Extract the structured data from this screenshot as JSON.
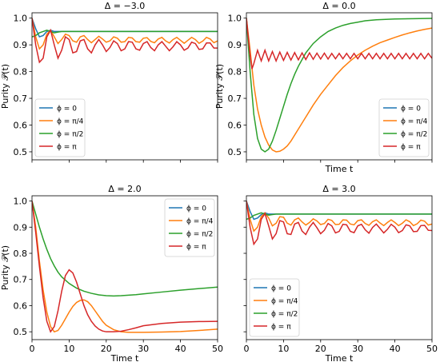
{
  "figure": {
    "ylabel": "Purity 𝒫(t)",
    "xlabel": "Time t"
  },
  "chart_data": [
    {
      "type": "line",
      "title": "Δ = −3.0",
      "xlabel": "",
      "ylabel": "Purity 𝒫(t)",
      "xlim": [
        0,
        50
      ],
      "ylim": [
        0.47,
        1.02
      ],
      "yticks": [
        "0.5",
        "0.6",
        "0.7",
        "0.8",
        "0.9",
        "1.0"
      ],
      "xticks": [],
      "legend": "lower-left",
      "series": [
        {
          "name": "ϕ = 0",
          "color": "#1f77b4",
          "x": [
            0,
            1,
            2,
            3,
            4,
            5,
            6,
            8,
            10,
            20,
            30,
            40,
            50
          ],
          "y": [
            1.0,
            0.96,
            0.93,
            0.935,
            0.95,
            0.955,
            0.95,
            0.95,
            0.95,
            0.95,
            0.95,
            0.95,
            0.95
          ]
        },
        {
          "name": "ϕ = π/4",
          "color": "#ff7f0e",
          "x": [
            0,
            1,
            2,
            3,
            4,
            5,
            6,
            7,
            8,
            9,
            10,
            11,
            12,
            13,
            14,
            15,
            16,
            17,
            18,
            19,
            20,
            21,
            22,
            23,
            24,
            25,
            26,
            27,
            28,
            29,
            30,
            31,
            32,
            33,
            34,
            35,
            36,
            37,
            38,
            39,
            40,
            41,
            42,
            43,
            44,
            45,
            46,
            47,
            48,
            49,
            50
          ],
          "y": [
            1.0,
            0.93,
            0.885,
            0.9,
            0.94,
            0.955,
            0.93,
            0.905,
            0.92,
            0.94,
            0.935,
            0.915,
            0.91,
            0.93,
            0.935,
            0.92,
            0.908,
            0.92,
            0.932,
            0.922,
            0.91,
            0.915,
            0.93,
            0.925,
            0.91,
            0.912,
            0.928,
            0.926,
            0.912,
            0.91,
            0.925,
            0.927,
            0.913,
            0.908,
            0.922,
            0.928,
            0.915,
            0.907,
            0.92,
            0.928,
            0.917,
            0.906,
            0.917,
            0.928,
            0.92,
            0.906,
            0.914,
            0.928,
            0.922,
            0.908,
            0.915
          ]
        },
        {
          "name": "ϕ = π/2",
          "color": "#2ca02c",
          "x": [
            0,
            1,
            2,
            3,
            4,
            5,
            6,
            7,
            8,
            10,
            15,
            20,
            30,
            40,
            50
          ],
          "y": [
            0.93,
            0.935,
            0.945,
            0.95,
            0.955,
            0.95,
            0.945,
            0.948,
            0.95,
            0.95,
            0.95,
            0.95,
            0.95,
            0.95,
            0.95
          ]
        },
        {
          "name": "ϕ = π",
          "color": "#d62728",
          "x": [
            0,
            1,
            2,
            3,
            4,
            5,
            6,
            7,
            8,
            9,
            10,
            11,
            12,
            13,
            14,
            15,
            16,
            17,
            18,
            19,
            20,
            21,
            22,
            23,
            24,
            25,
            26,
            27,
            28,
            29,
            30,
            31,
            32,
            33,
            34,
            35,
            36,
            37,
            38,
            39,
            40,
            41,
            42,
            43,
            44,
            45,
            46,
            47,
            48,
            49,
            50
          ],
          "y": [
            1.0,
            0.9,
            0.835,
            0.85,
            0.93,
            0.955,
            0.9,
            0.85,
            0.88,
            0.93,
            0.92,
            0.87,
            0.875,
            0.915,
            0.92,
            0.885,
            0.87,
            0.9,
            0.92,
            0.9,
            0.875,
            0.89,
            0.915,
            0.905,
            0.878,
            0.885,
            0.912,
            0.91,
            0.885,
            0.88,
            0.905,
            0.912,
            0.89,
            0.878,
            0.9,
            0.912,
            0.895,
            0.878,
            0.893,
            0.912,
            0.9,
            0.88,
            0.888,
            0.91,
            0.905,
            0.883,
            0.885,
            0.907,
            0.907,
            0.888,
            0.888
          ]
        }
      ]
    },
    {
      "type": "line",
      "title": "Δ = 0.0",
      "xlabel": "Time t",
      "ylabel": "Purity 𝒫(t)",
      "xlim": [
        0,
        50
      ],
      "ylim": [
        0.47,
        1.02
      ],
      "yticks": [
        "0.5",
        "0.6",
        "0.7",
        "0.8",
        "0.9",
        "1.0"
      ],
      "xticks": [],
      "legend": "lower-right",
      "series": [
        {
          "name": "ϕ = 0",
          "color": "#1f77b4",
          "x": [],
          "y": []
        },
        {
          "name": "ϕ = π/4",
          "color": "#ff7f0e",
          "x": [
            0,
            1,
            2,
            3,
            4,
            5,
            6,
            7,
            8,
            9,
            10,
            11,
            12,
            14,
            16,
            18,
            20,
            22,
            24,
            26,
            28,
            30,
            32,
            34,
            36,
            38,
            40,
            42,
            44,
            46,
            48,
            50
          ],
          "y": [
            1.0,
            0.88,
            0.75,
            0.66,
            0.6,
            0.555,
            0.525,
            0.507,
            0.5,
            0.502,
            0.51,
            0.522,
            0.54,
            0.585,
            0.63,
            0.675,
            0.715,
            0.75,
            0.785,
            0.815,
            0.84,
            0.862,
            0.88,
            0.895,
            0.908,
            0.918,
            0.928,
            0.937,
            0.945,
            0.952,
            0.958,
            0.963
          ]
        },
        {
          "name": "ϕ = π/2",
          "color": "#2ca02c",
          "x": [
            0,
            1,
            2,
            3,
            4,
            5,
            6,
            7,
            8,
            9,
            10,
            11,
            12,
            13,
            14,
            15,
            16,
            18,
            20,
            22,
            24,
            26,
            28,
            30,
            32,
            35,
            40,
            45,
            50
          ],
          "y": [
            1.0,
            0.8,
            0.64,
            0.55,
            0.51,
            0.5,
            0.51,
            0.54,
            0.58,
            0.625,
            0.67,
            0.715,
            0.755,
            0.79,
            0.82,
            0.845,
            0.87,
            0.905,
            0.93,
            0.95,
            0.963,
            0.973,
            0.98,
            0.985,
            0.99,
            0.994,
            0.997,
            0.998,
            0.999
          ]
        },
        {
          "name": "ϕ = π",
          "color": "#d62728",
          "x": [
            0,
            0.5,
            1,
            1.5,
            2,
            3,
            4,
            5,
            6,
            7,
            8,
            9,
            10,
            11,
            12,
            13,
            14,
            15,
            16,
            17,
            18,
            19,
            20,
            21,
            22,
            23,
            24,
            25,
            26,
            27,
            28,
            29,
            30,
            31,
            32,
            33,
            34,
            35,
            36,
            37,
            38,
            39,
            40,
            41,
            42,
            43,
            44,
            45,
            46,
            47,
            48,
            49,
            50
          ],
          "y": [
            1.0,
            0.93,
            0.86,
            0.81,
            0.83,
            0.88,
            0.84,
            0.88,
            0.84,
            0.875,
            0.84,
            0.873,
            0.842,
            0.872,
            0.843,
            0.871,
            0.844,
            0.87,
            0.845,
            0.87,
            0.846,
            0.869,
            0.847,
            0.869,
            0.847,
            0.868,
            0.848,
            0.868,
            0.848,
            0.868,
            0.848,
            0.868,
            0.848,
            0.868,
            0.848,
            0.868,
            0.848,
            0.868,
            0.848,
            0.868,
            0.848,
            0.868,
            0.848,
            0.868,
            0.848,
            0.868,
            0.848,
            0.868,
            0.848,
            0.868,
            0.848,
            0.868,
            0.85
          ]
        }
      ]
    },
    {
      "type": "line",
      "title": "Δ = 2.0",
      "xlabel": "Time t",
      "ylabel": "Purity 𝒫(t)",
      "xlim": [
        0,
        50
      ],
      "ylim": [
        0.47,
        1.02
      ],
      "yticks": [
        "0.5",
        "0.6",
        "0.7",
        "0.8",
        "0.9",
        "1.0"
      ],
      "xticks": [
        "0",
        "10",
        "20",
        "30",
        "40",
        "50"
      ],
      "legend": "upper-right",
      "series": [
        {
          "name": "ϕ = 0",
          "color": "#1f77b4",
          "x": [],
          "y": []
        },
        {
          "name": "ϕ = π/4",
          "color": "#ff7f0e",
          "x": [
            0,
            1,
            2,
            3,
            4,
            5,
            6,
            7,
            8,
            9,
            10,
            11,
            12,
            13,
            14,
            15,
            16,
            17,
            18,
            19,
            20,
            22,
            24,
            26,
            28,
            30,
            35,
            40,
            45,
            50
          ],
          "y": [
            1.0,
            0.9,
            0.77,
            0.66,
            0.575,
            0.52,
            0.5,
            0.505,
            0.525,
            0.55,
            0.575,
            0.597,
            0.612,
            0.62,
            0.622,
            0.615,
            0.6,
            0.58,
            0.56,
            0.54,
            0.525,
            0.508,
            0.5,
            0.498,
            0.498,
            0.498,
            0.499,
            0.501,
            0.505,
            0.51
          ]
        },
        {
          "name": "ϕ = π/2",
          "color": "#2ca02c",
          "x": [
            0,
            1,
            2,
            3,
            4,
            5,
            6,
            7,
            8,
            10,
            12,
            14,
            16,
            18,
            20,
            22,
            24,
            26,
            28,
            30,
            35,
            40,
            45,
            50
          ],
          "y": [
            1.0,
            0.95,
            0.9,
            0.855,
            0.815,
            0.78,
            0.752,
            0.728,
            0.71,
            0.685,
            0.667,
            0.655,
            0.647,
            0.641,
            0.638,
            0.637,
            0.638,
            0.64,
            0.642,
            0.645,
            0.652,
            0.659,
            0.665,
            0.671
          ]
        },
        {
          "name": "ϕ = π",
          "color": "#d62728",
          "x": [
            0,
            1,
            2,
            3,
            4,
            5,
            6,
            7,
            8,
            9,
            10,
            11,
            12,
            13,
            14,
            15,
            16,
            17,
            18,
            19,
            20,
            22,
            24,
            26,
            28,
            30,
            35,
            40,
            45,
            50
          ],
          "y": [
            1.0,
            0.88,
            0.75,
            0.63,
            0.54,
            0.5,
            0.52,
            0.58,
            0.655,
            0.715,
            0.737,
            0.725,
            0.69,
            0.645,
            0.6,
            0.565,
            0.54,
            0.522,
            0.51,
            0.503,
            0.5,
            0.5,
            0.502,
            0.508,
            0.515,
            0.523,
            0.532,
            0.537,
            0.539,
            0.54
          ]
        }
      ]
    },
    {
      "type": "line",
      "title": "Δ = 3.0",
      "xlabel": "Time t",
      "ylabel": "",
      "xlim": [
        0,
        50
      ],
      "ylim": [
        0.47,
        1.02
      ],
      "yticks": [],
      "xticks": [
        "0",
        "10",
        "20",
        "30",
        "40",
        "50"
      ],
      "legend": "lower-left",
      "series": [
        {
          "name": "ϕ = 0",
          "color": "#1f77b4",
          "x": [
            0,
            1,
            2,
            3,
            4,
            5,
            6,
            8,
            10,
            20,
            30,
            40,
            50
          ],
          "y": [
            1.0,
            0.96,
            0.93,
            0.935,
            0.948,
            0.955,
            0.95,
            0.95,
            0.95,
            0.95,
            0.95,
            0.95,
            0.95
          ]
        },
        {
          "name": "ϕ = π/4",
          "color": "#ff7f0e",
          "x": [
            0,
            1,
            2,
            3,
            4,
            5,
            6,
            7,
            8,
            9,
            10,
            11,
            12,
            13,
            14,
            15,
            16,
            17,
            18,
            19,
            20,
            21,
            22,
            23,
            24,
            25,
            26,
            27,
            28,
            29,
            30,
            31,
            32,
            33,
            34,
            35,
            36,
            37,
            38,
            39,
            40,
            41,
            42,
            43,
            44,
            45,
            46,
            47,
            48,
            49,
            50
          ],
          "y": [
            1.0,
            0.93,
            0.885,
            0.9,
            0.94,
            0.955,
            0.935,
            0.905,
            0.915,
            0.94,
            0.938,
            0.915,
            0.908,
            0.928,
            0.935,
            0.92,
            0.908,
            0.918,
            0.932,
            0.924,
            0.91,
            0.914,
            0.93,
            0.926,
            0.91,
            0.911,
            0.928,
            0.927,
            0.912,
            0.909,
            0.925,
            0.928,
            0.914,
            0.907,
            0.921,
            0.928,
            0.916,
            0.906,
            0.918,
            0.928,
            0.918,
            0.906,
            0.915,
            0.928,
            0.921,
            0.906,
            0.913,
            0.927,
            0.923,
            0.908,
            0.912
          ]
        },
        {
          "name": "ϕ = π/2",
          "color": "#2ca02c",
          "x": [
            0,
            1,
            2,
            3,
            4,
            5,
            6,
            7,
            8,
            10,
            15,
            20,
            30,
            40,
            50
          ],
          "y": [
            0.93,
            0.935,
            0.945,
            0.95,
            0.955,
            0.95,
            0.946,
            0.948,
            0.95,
            0.95,
            0.95,
            0.95,
            0.95,
            0.95,
            0.95
          ]
        },
        {
          "name": "ϕ = π",
          "color": "#d62728",
          "x": [
            0,
            1,
            2,
            3,
            4,
            5,
            6,
            7,
            8,
            9,
            10,
            11,
            12,
            13,
            14,
            15,
            16,
            17,
            18,
            19,
            20,
            21,
            22,
            23,
            24,
            25,
            26,
            27,
            28,
            29,
            30,
            31,
            32,
            33,
            34,
            35,
            36,
            37,
            38,
            39,
            40,
            41,
            42,
            43,
            44,
            45,
            46,
            47,
            48,
            49,
            50
          ],
          "y": [
            1.0,
            0.9,
            0.835,
            0.855,
            0.93,
            0.952,
            0.905,
            0.855,
            0.875,
            0.925,
            0.92,
            0.875,
            0.872,
            0.912,
            0.918,
            0.885,
            0.872,
            0.9,
            0.918,
            0.898,
            0.875,
            0.888,
            0.914,
            0.905,
            0.878,
            0.884,
            0.911,
            0.909,
            0.884,
            0.879,
            0.905,
            0.911,
            0.89,
            0.877,
            0.899,
            0.912,
            0.895,
            0.878,
            0.892,
            0.911,
            0.9,
            0.879,
            0.887,
            0.909,
            0.905,
            0.883,
            0.884,
            0.906,
            0.907,
            0.888,
            0.887
          ]
        }
      ]
    }
  ]
}
